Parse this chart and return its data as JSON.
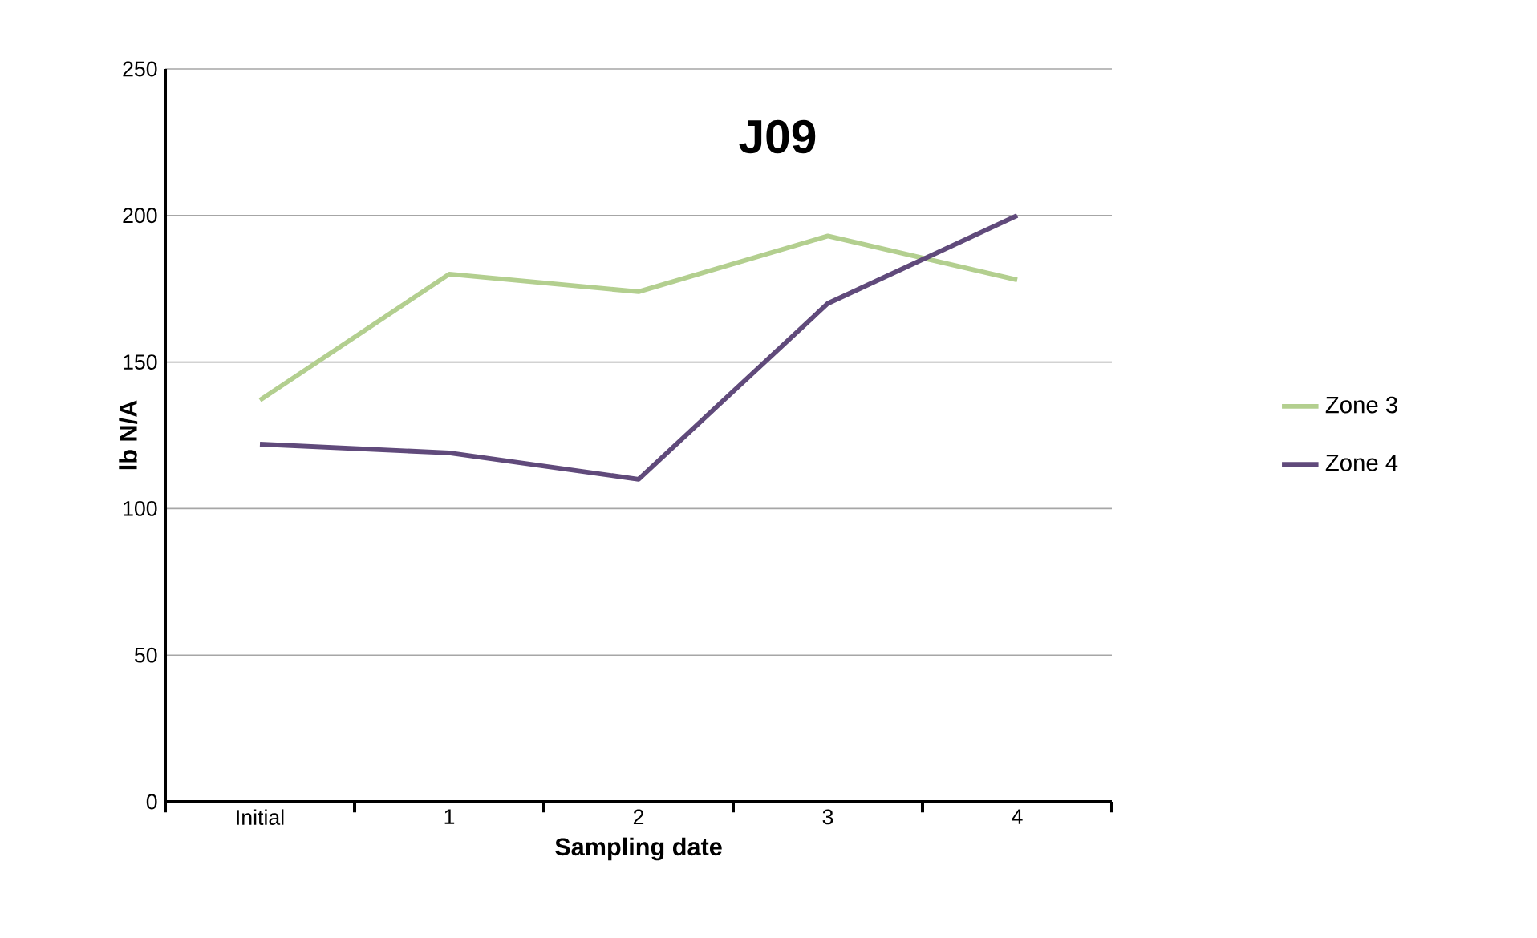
{
  "chart_data": {
    "type": "line",
    "title": "J09",
    "xlabel": "Sampling date",
    "ylabel": "lb N/A",
    "categories": [
      "Initial",
      "1",
      "2",
      "3",
      "4"
    ],
    "series": [
      {
        "name": "Zone 3",
        "color": "#b3cf8f",
        "values": [
          137,
          180,
          174,
          193,
          178
        ]
      },
      {
        "name": "Zone 4",
        "color": "#604a7b",
        "values": [
          122,
          119,
          110,
          170,
          200
        ]
      }
    ],
    "ylim": [
      0,
      250
    ],
    "yticks": [
      0,
      50,
      100,
      150,
      200,
      250
    ],
    "grid": "y",
    "legend": "right",
    "marker": "none",
    "line_style": "solid"
  }
}
